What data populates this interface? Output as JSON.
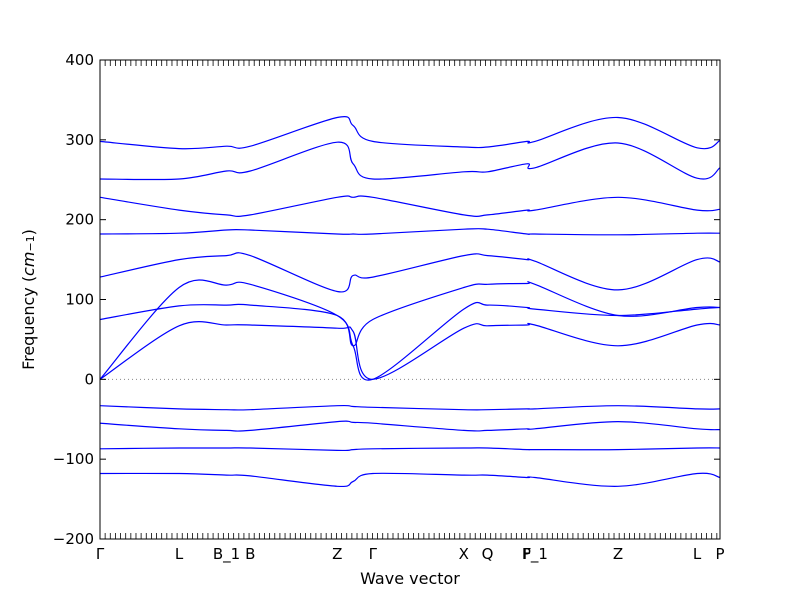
{
  "chart_data": {
    "type": "line",
    "xlabel": "Wave vector",
    "ylabel_prefix": "Frequency (",
    "ylabel_unit": "cm",
    "ylabel_exp": "−1",
    "ylabel_suffix": ")",
    "ylim": [
      -200,
      400
    ],
    "yticks": [
      -200,
      -100,
      0,
      100,
      200,
      300,
      400
    ],
    "ytick_labels": [
      "−200",
      "−100",
      "0",
      "100",
      "200",
      "300",
      "400"
    ],
    "xlim": [
      0,
      7.84
    ],
    "xticks": [
      {
        "pos": 0.0,
        "label": "Γ"
      },
      {
        "pos": 1.0,
        "label": "L"
      },
      {
        "pos": 1.6,
        "label": "B_1"
      },
      {
        "pos": 1.9,
        "label": "B"
      },
      {
        "pos": 3.0,
        "label": "Z"
      },
      {
        "pos": 3.45,
        "label": "Γ"
      },
      {
        "pos": 4.6,
        "label": "X"
      },
      {
        "pos": 4.9,
        "label": "Q"
      },
      {
        "pos": 5.4,
        "label": "F"
      },
      {
        "pos": 5.5,
        "label": "P_1"
      },
      {
        "pos": 6.55,
        "label": "Z"
      },
      {
        "pos": 7.55,
        "label": "L"
      },
      {
        "pos": 7.84,
        "label": "P"
      }
    ],
    "grid": false,
    "zero_line": true,
    "line_color": "#0000ff",
    "series": [
      {
        "x": [
          0,
          1.0,
          1.6,
          1.9,
          3.0,
          3.2,
          3.45,
          4.6,
          4.9,
          5.4,
          5.5,
          6.55,
          7.55,
          7.84
        ],
        "y": [
          0,
          115,
          118,
          119,
          80,
          42,
          0,
          88,
          93,
          90,
          88,
          80,
          88,
          90
        ]
      },
      {
        "x": [
          0,
          1.0,
          1.6,
          1.9,
          3.0,
          3.2,
          3.45,
          4.6,
          4.9,
          5.4,
          5.5,
          6.55,
          7.55,
          7.84
        ],
        "y": [
          0,
          67,
          68,
          68,
          64,
          60,
          0,
          64,
          67,
          68,
          68,
          42,
          68,
          68
        ]
      },
      {
        "x": [
          0,
          1.0,
          1.6,
          1.9,
          3.0,
          3.2,
          3.45,
          4.6,
          4.9,
          5.4,
          5.5,
          6.55,
          7.55,
          7.84
        ],
        "y": [
          75,
          92,
          93,
          93,
          80,
          42,
          75,
          115,
          119,
          120,
          119,
          80,
          90,
          90
        ]
      },
      {
        "x": [
          0,
          1.0,
          1.6,
          1.9,
          3.0,
          3.2,
          3.45,
          4.6,
          4.9,
          5.4,
          5.5,
          6.55,
          7.55,
          7.84
        ],
        "y": [
          128,
          150,
          155,
          155,
          110,
          130,
          128,
          155,
          155,
          150,
          148,
          112,
          150,
          147
        ]
      },
      {
        "x": [
          0,
          1.0,
          1.6,
          1.9,
          3.0,
          3.2,
          3.45,
          4.6,
          4.9,
          5.4,
          5.5,
          6.55,
          7.55,
          7.84
        ],
        "y": [
          182,
          183,
          187,
          187,
          182,
          182,
          182,
          188,
          188,
          182,
          182,
          181,
          183,
          183
        ]
      },
      {
        "x": [
          0,
          1.0,
          1.6,
          1.9,
          3.0,
          3.2,
          3.45,
          4.6,
          4.9,
          5.4,
          5.5,
          6.55,
          7.55,
          7.84
        ],
        "y": [
          228,
          212,
          206,
          206,
          228,
          228,
          228,
          206,
          206,
          212,
          212,
          228,
          212,
          213
        ]
      },
      {
        "x": [
          0,
          1.0,
          1.6,
          1.9,
          3.0,
          3.2,
          3.45,
          4.6,
          4.9,
          5.4,
          5.5,
          6.55,
          7.55,
          7.84
        ],
        "y": [
          251,
          251,
          261,
          261,
          297,
          270,
          251,
          260,
          260,
          270,
          265,
          296,
          252,
          265
        ]
      },
      {
        "x": [
          0,
          1.0,
          1.6,
          1.9,
          3.0,
          3.2,
          3.45,
          4.6,
          4.9,
          5.4,
          5.5,
          6.55,
          7.55,
          7.84
        ],
        "y": [
          298,
          289,
          292,
          292,
          328,
          318,
          298,
          291,
          291,
          298,
          298,
          328,
          290,
          299
        ]
      },
      {
        "x": [
          0,
          1.0,
          1.6,
          1.9,
          3.0,
          3.2,
          3.45,
          4.6,
          4.9,
          5.4,
          5.5,
          6.55,
          7.55,
          7.84
        ],
        "y": [
          -33,
          -37,
          -38,
          -38,
          -33,
          -34,
          -35,
          -38,
          -38,
          -37,
          -37,
          -33,
          -37,
          -37
        ]
      },
      {
        "x": [
          0,
          1.0,
          1.6,
          1.9,
          3.0,
          3.2,
          3.45,
          4.6,
          4.9,
          5.4,
          5.5,
          6.55,
          7.55,
          7.84
        ],
        "y": [
          -55,
          -62,
          -64,
          -64,
          -53,
          -54,
          -55,
          -64,
          -64,
          -62,
          -62,
          -53,
          -62,
          -63
        ]
      },
      {
        "x": [
          0,
          1.0,
          1.6,
          1.9,
          3.0,
          3.2,
          3.45,
          4.6,
          4.9,
          5.4,
          5.5,
          6.55,
          7.55,
          7.84
        ],
        "y": [
          -87,
          -86,
          -86,
          -86,
          -89,
          -88,
          -87,
          -86,
          -86,
          -88,
          -88,
          -88,
          -86,
          -86
        ]
      },
      {
        "x": [
          0,
          1.0,
          1.6,
          1.9,
          3.0,
          3.2,
          3.45,
          4.6,
          4.9,
          5.4,
          5.5,
          6.55,
          7.55,
          7.84
        ],
        "y": [
          -118,
          -118,
          -120,
          -121,
          -134,
          -128,
          -118,
          -120,
          -120,
          -123,
          -123,
          -134,
          -118,
          -123
        ]
      }
    ]
  }
}
